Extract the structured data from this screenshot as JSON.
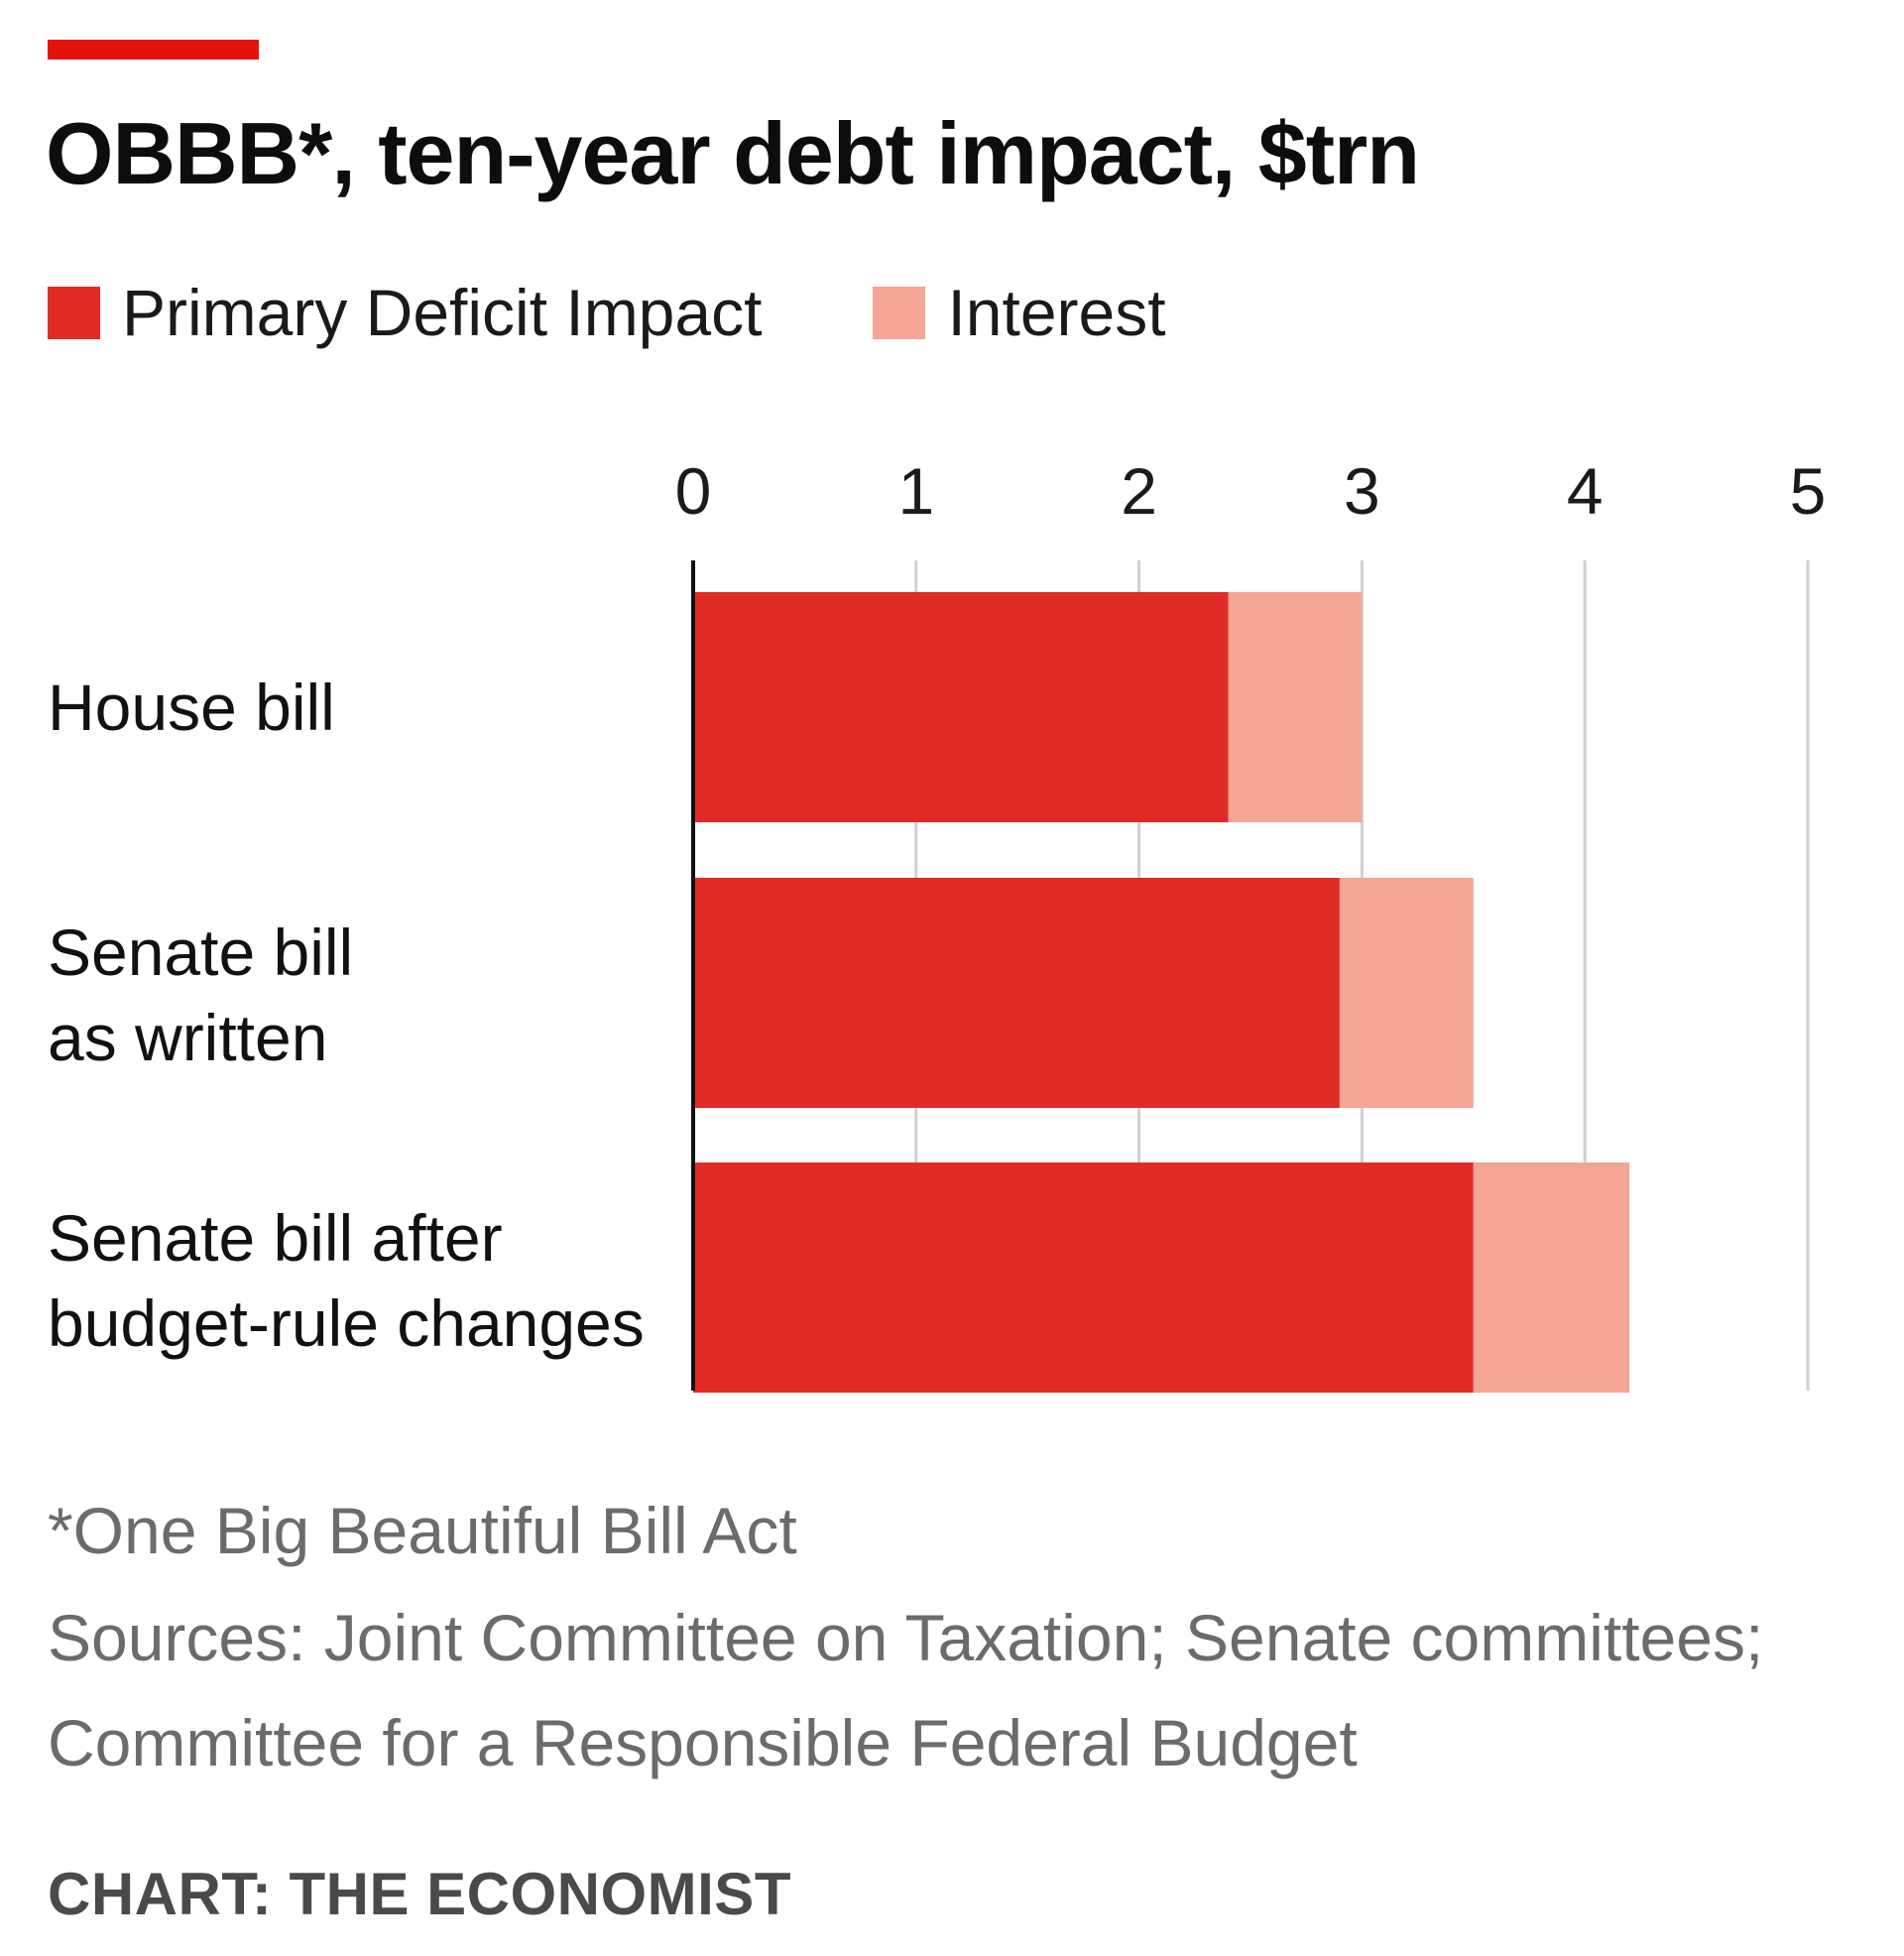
{
  "chart_data": {
    "type": "bar",
    "orientation": "horizontal",
    "stacked": true,
    "title": "OBBB*, ten-year debt impact, $trn",
    "categories": [
      [
        "House bill"
      ],
      [
        "Senate bill",
        "as written"
      ],
      [
        "Senate bill after",
        "budget-rule changes"
      ]
    ],
    "series": [
      {
        "name": "Primary Deficit Impact",
        "color": "#e02b26",
        "values": [
          2.4,
          2.9,
          3.5
        ]
      },
      {
        "name": "Interest",
        "color": "#f5a593",
        "values": [
          0.6,
          0.6,
          0.7
        ]
      }
    ],
    "xlim": [
      0,
      5
    ],
    "xticks": [
      "0",
      "1",
      "2",
      "3",
      "4",
      "5"
    ],
    "grid": true,
    "legend": "top-left"
  },
  "footnote": "*One Big Beautiful Bill Act",
  "sources": [
    "Sources: Joint Committee on Taxation; Senate committees;",
    "Committee for a Responsible Federal Budget"
  ],
  "credit": "CHART: THE ECONOMIST",
  "colors": {
    "accent": "#e3120b",
    "gridline": "#d0d0d0",
    "axis": "#111111"
  }
}
